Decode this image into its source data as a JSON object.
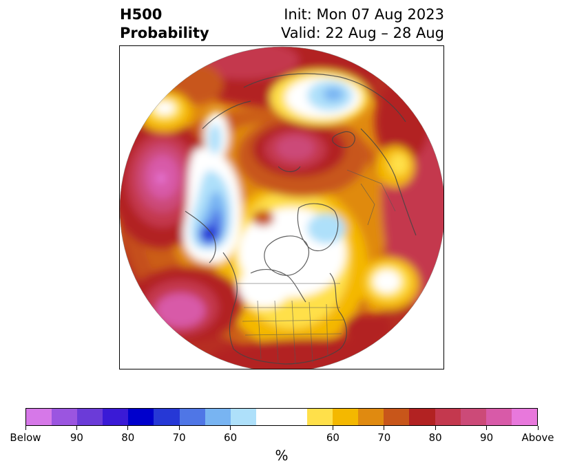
{
  "title": {
    "line1": "H500",
    "line2": "Probability",
    "init": "Init: Mon 07 Aug 2023",
    "valid": "Valid: 22 Aug – 28 Aug"
  },
  "colorbar": {
    "unit": "%",
    "colors": [
      "#d678e8",
      "#9b55e0",
      "#6b3bd8",
      "#3a1ad6",
      "#0000cc",
      "#2638d6",
      "#4f76e6",
      "#78b4f2",
      "#aee0fa",
      "#ffffff",
      "#ffe04a",
      "#f4b800",
      "#e08a10",
      "#c8561a",
      "#b22222",
      "#c4384e",
      "#cc4a78",
      "#d85aa8",
      "#e878dc"
    ],
    "tick_labels": [
      "Below",
      "90",
      "80",
      "70",
      "60",
      "60",
      "70",
      "80",
      "90",
      "Above"
    ]
  },
  "map": {
    "projection": "north-polar-stereographic",
    "palette": {
      "white": "#ffffff",
      "yellow": "#ffe04a",
      "gold": "#f4b800",
      "orange": "#e08a10",
      "burnt": "#c8561a",
      "red": "#b22222",
      "rose": "#c4384e",
      "magenta": "#cc4a78",
      "pink": "#d85aa8",
      "violet": "#e878dc",
      "lblue": "#aee0fa",
      "sky": "#78b4f2",
      "blue": "#4f76e6",
      "dblue": "#2638d6"
    }
  }
}
